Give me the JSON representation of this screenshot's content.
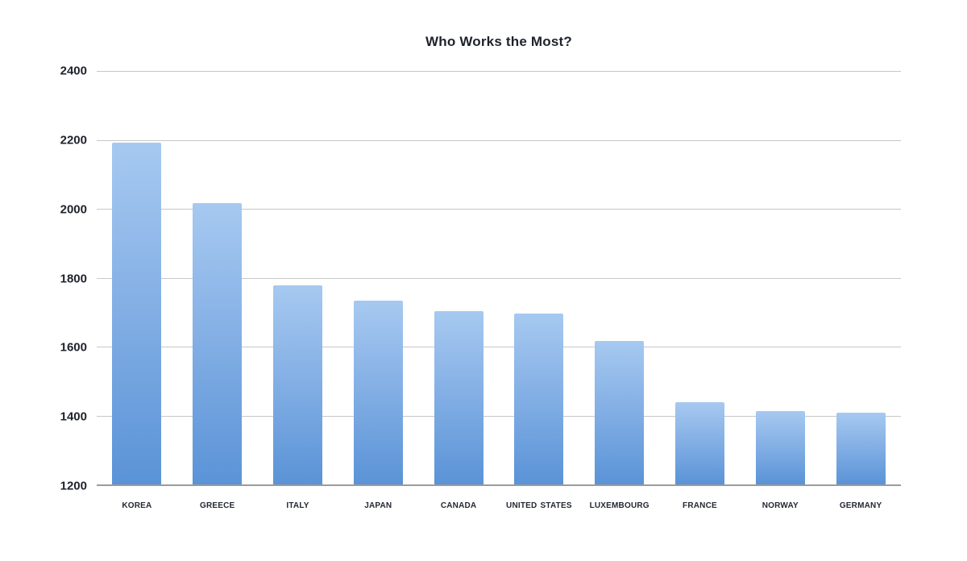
{
  "chart_data": {
    "type": "bar",
    "title": "Who Works the Most?",
    "categories": [
      "Korea",
      "Greece",
      "Italy",
      "Japan",
      "Canada",
      "United States",
      "Luxembourg",
      "France",
      "Norway",
      "Germany"
    ],
    "values": [
      2193,
      2017,
      1778,
      1733,
      1702,
      1695,
      1616,
      1439,
      1414,
      1408
    ],
    "xlabel": "",
    "ylabel": "",
    "ylim": [
      1200,
      2400
    ],
    "yticks": [
      2400,
      2200,
      2000,
      1800,
      1600,
      1400,
      1200
    ],
    "grid": true,
    "legend": false,
    "bar_color_top": "#a6c9f0",
    "bar_color_bottom": "#5a93d7",
    "gridline_color": "#c7c7c7",
    "axis_line_color": "#9b9b9b",
    "text_color": "#1e222b"
  }
}
